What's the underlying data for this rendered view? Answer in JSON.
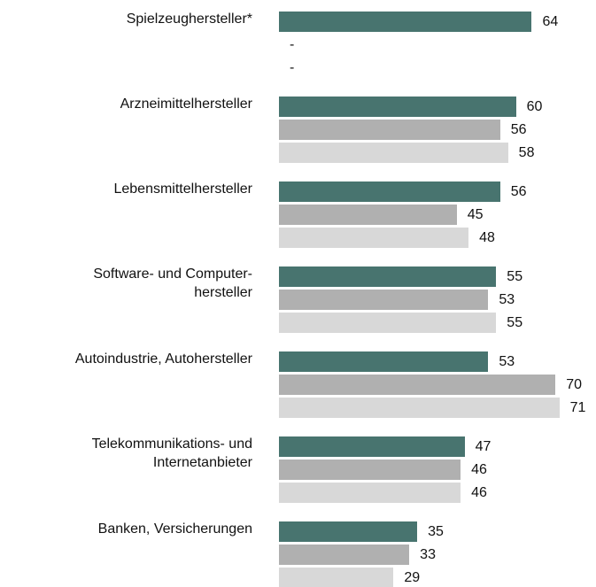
{
  "chart_data": {
    "type": "hbar",
    "categories": [
      "Spielzeughersteller*",
      "Arzneimittelhersteller",
      "Lebensmittelhersteller",
      "Software- und Computer-\nhersteller",
      "Autoindustrie, Autohersteller",
      "Telekommunikations- und\nInternetanbieter",
      "Banken, Versicherungen"
    ],
    "series": [
      {
        "color": "#48746f",
        "values": [
          64,
          60,
          56,
          55,
          53,
          47,
          35
        ]
      },
      {
        "color": "#b0b0b0",
        "values": [
          null,
          56,
          45,
          53,
          70,
          46,
          33
        ],
        "value_labels": [
          "-",
          "56",
          "45",
          "53",
          "70",
          "46",
          "33"
        ]
      },
      {
        "color": "#d8d8d8",
        "values": [
          null,
          58,
          48,
          55,
          71,
          46,
          29
        ],
        "value_labels": [
          "-",
          "58",
          "48",
          "55",
          "71",
          "46",
          "29"
        ]
      }
    ]
  }
}
